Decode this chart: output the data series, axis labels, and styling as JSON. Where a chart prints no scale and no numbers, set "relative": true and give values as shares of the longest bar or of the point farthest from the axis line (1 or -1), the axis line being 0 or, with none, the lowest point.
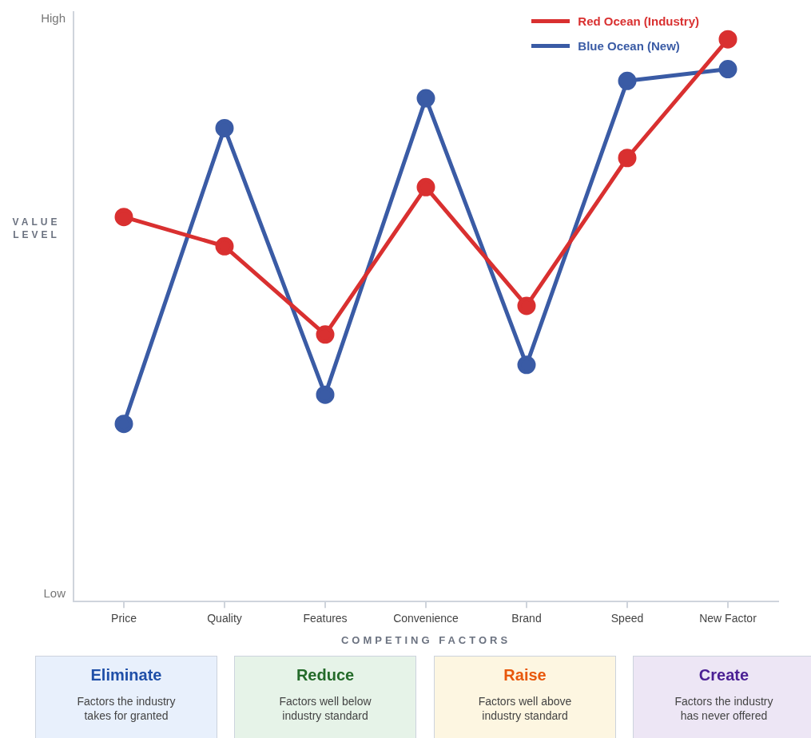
{
  "chart_data": {
    "type": "line",
    "relative": true,
    "xlabel": "COMPETING FACTORS",
    "ylabel": "VALUE LEVEL",
    "categories": [
      "Price",
      "Quality",
      "Features",
      "Convenience",
      "Brand",
      "Speed",
      "New Factor"
    ],
    "series": [
      {
        "name": "Red Ocean (Industry)",
        "color": "#d93030",
        "values": [
          0.684,
          0.632,
          0.475,
          0.737,
          0.526,
          0.789,
          1
        ]
      },
      {
        "name": "Blue Ocean (New)",
        "color": "#3a5ba5",
        "values": [
          0.316,
          0.842,
          0.368,
          0.895,
          0.421,
          0.926,
          0.947
        ]
      }
    ],
    "annotations": [
      "High",
      "Low",
      "Eliminate",
      "Factors the industry takes for granted",
      "Reduce",
      "Factors well below industry standard",
      "Raise",
      "Factors well above industry standard",
      "Create",
      "Factors the industry has never offered"
    ],
    "legend": "top right",
    "marker": "circle",
    "line_style": "solid",
    "grid": false
  }
}
